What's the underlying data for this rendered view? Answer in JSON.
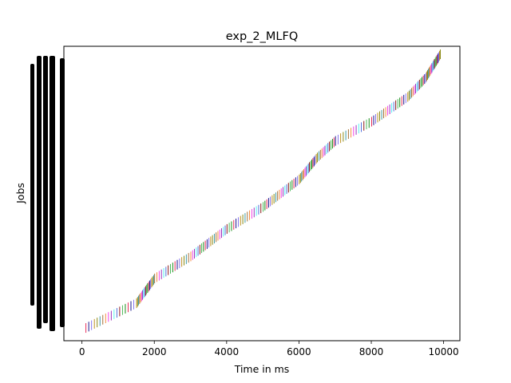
{
  "chart_data": {
    "type": "bar",
    "orientation": "horizontal-gantt",
    "title": "exp_2_MLFQ",
    "xlabel": "Time in ms",
    "ylabel": "Jobs",
    "xlim": [
      -500,
      10450
    ],
    "xticks": [
      0,
      2000,
      4000,
      6000,
      8000,
      10000
    ],
    "yticks_visible": false,
    "grid": false,
    "legend": "none",
    "job_count": 200,
    "job_timeline": [
      {
        "time": 100,
        "job": 0
      },
      {
        "time": 1500,
        "job": 18
      },
      {
        "time": 2000,
        "job": 36
      },
      {
        "time": 3000,
        "job": 52
      },
      {
        "time": 4000,
        "job": 72
      },
      {
        "time": 5000,
        "job": 88
      },
      {
        "time": 6000,
        "job": 108
      },
      {
        "time": 6500,
        "job": 124
      },
      {
        "time": 7000,
        "job": 136
      },
      {
        "time": 8000,
        "job": 150
      },
      {
        "time": 9000,
        "job": 168
      },
      {
        "time": 9500,
        "job": 182
      },
      {
        "time": 9900,
        "job": 199
      }
    ],
    "segment_colors": [
      "#e6194b",
      "#3cb44b",
      "#4363d8",
      "#911eb4",
      "#f58231",
      "#2f8f9d",
      "#b8860b",
      "#000080",
      "#008000",
      "#800000",
      "#46f0f0",
      "#f032e6",
      "#9a6324",
      "#808000",
      "#7b68ee"
    ],
    "label_block_color": "#000000"
  }
}
